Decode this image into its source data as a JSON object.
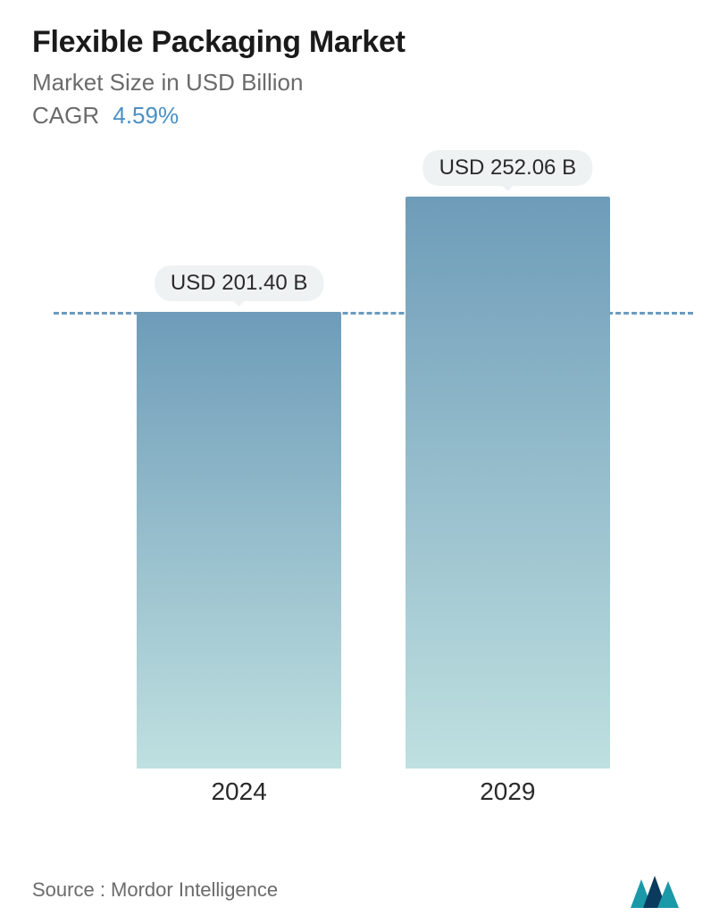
{
  "header": {
    "title": "Flexible Packaging Market",
    "subtitle": "Market Size in USD Billion",
    "cagr_label": "CAGR",
    "cagr_value": "4.59%",
    "title_color": "#1a1a1a",
    "subtitle_color": "#6b6b6b",
    "cagr_value_color": "#4a90c4",
    "title_fontsize": 34,
    "subtitle_fontsize": 26
  },
  "chart": {
    "type": "bar",
    "ymax": 260,
    "reference_value": 201.4,
    "reference_line_color": "#6a9bc0",
    "reference_line_dash": "10 8",
    "bar_width_pct": 32,
    "bar_gap_pct": 10,
    "bar_gradient_top": "#6e9cb9",
    "bar_gradient_bottom": "#bfe0e0",
    "bars": [
      {
        "category": "2024",
        "value": 201.4,
        "label": "USD 201.40 B"
      },
      {
        "category": "2029",
        "value": 252.06,
        "label": "USD 252.06 B"
      }
    ],
    "value_label_bg": "#eef2f3",
    "value_label_color": "#2a2a2a",
    "value_label_fontsize": 24,
    "x_label_fontsize": 28,
    "x_label_color": "#2a2a2a",
    "background_color": "#ffffff"
  },
  "footer": {
    "source_text": "Source :  Mordor Intelligence",
    "source_color": "#6b6b6b",
    "source_fontsize": 22,
    "logo_primary": "#1a99a8",
    "logo_secondary": "#0a3b5e"
  }
}
